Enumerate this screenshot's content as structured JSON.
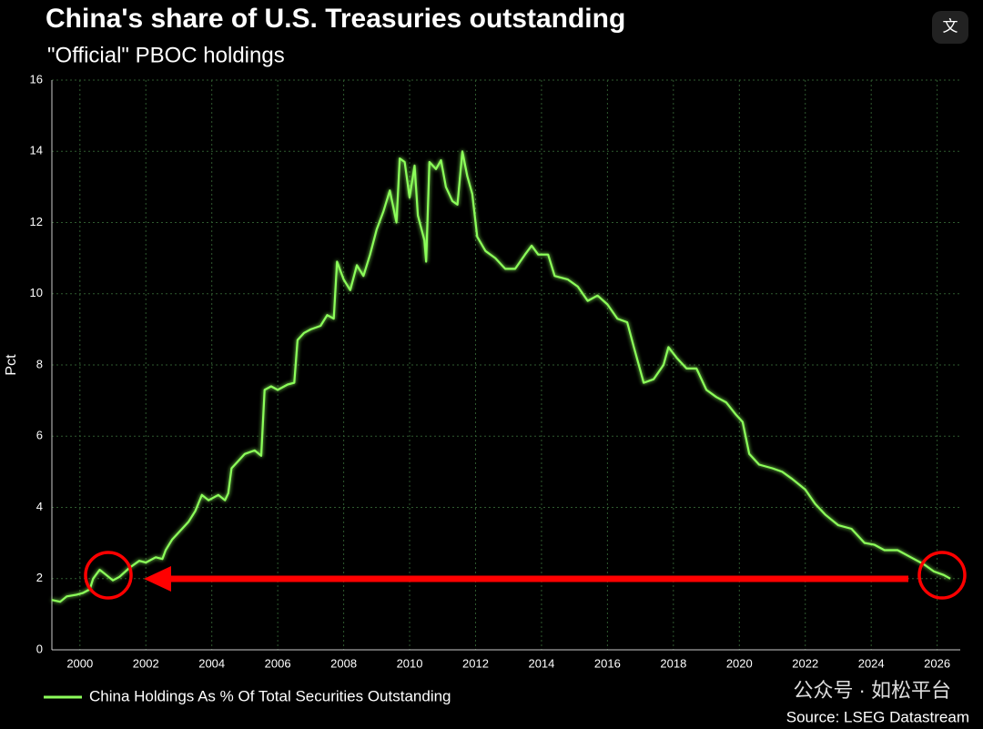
{
  "chart_data": {
    "type": "line",
    "title": "China's share of U.S. Treasuries outstanding",
    "subtitle": "\"Official\" PBOC holdings",
    "ylabel": "Pct",
    "source": "Source: LSEG Datastream",
    "watermark": "公众号 · 如松平台",
    "icon_label": "文",
    "grid": true,
    "xlim": [
      1999.15,
      2026.7
    ],
    "ylim": [
      0,
      16
    ],
    "xticks": [
      2000,
      2002,
      2004,
      2006,
      2008,
      2010,
      2012,
      2014,
      2016,
      2018,
      2020,
      2022,
      2024,
      2026
    ],
    "yticks": [
      0,
      2,
      4,
      6,
      8,
      10,
      12,
      14,
      16
    ],
    "x": [
      1999.15,
      1999.4,
      1999.6,
      1999.9,
      2000.1,
      2000.3,
      2000.4,
      2000.6,
      2000.8,
      2001.0,
      2001.2,
      2001.5,
      2001.8,
      2002.0,
      2002.3,
      2002.5,
      2002.6,
      2002.8,
      2003.0,
      2003.3,
      2003.5,
      2003.7,
      2003.9,
      2004.2,
      2004.4,
      2004.5,
      2004.6,
      2004.8,
      2005.0,
      2005.3,
      2005.5,
      2005.6,
      2005.8,
      2006.0,
      2006.3,
      2006.5,
      2006.6,
      2006.8,
      2007.0,
      2007.3,
      2007.5,
      2007.7,
      2007.8,
      2008.0,
      2008.2,
      2008.4,
      2008.6,
      2008.8,
      2009.0,
      2009.2,
      2009.4,
      2009.6,
      2009.7,
      2009.85,
      2010.0,
      2010.15,
      2010.25,
      2010.45,
      2010.5,
      2010.6,
      2010.8,
      2010.95,
      2011.1,
      2011.3,
      2011.45,
      2011.6,
      2011.75,
      2011.9,
      2012.05,
      2012.3,
      2012.6,
      2012.9,
      2013.2,
      2013.5,
      2013.7,
      2013.9,
      2014.2,
      2014.4,
      2014.8,
      2015.1,
      2015.4,
      2015.7,
      2016.0,
      2016.3,
      2016.6,
      2016.8,
      2017.1,
      2017.4,
      2017.7,
      2017.85,
      2018.1,
      2018.4,
      2018.7,
      2019.0,
      2019.3,
      2019.6,
      2019.9,
      2020.1,
      2020.3,
      2020.6,
      2021.0,
      2021.3,
      2021.6,
      2022.0,
      2022.3,
      2022.6,
      2023.0,
      2023.4,
      2023.8,
      2024.1,
      2024.4,
      2024.8,
      2025.2,
      2025.6,
      2025.9,
      2026.2,
      2026.4
    ],
    "series": [
      {
        "name": "China Holdings As % Of Total Securities Outstanding",
        "color": "#8cff5a",
        "values": [
          1.4,
          1.35,
          1.5,
          1.55,
          1.6,
          1.7,
          2.0,
          2.25,
          2.1,
          1.95,
          2.05,
          2.3,
          2.5,
          2.45,
          2.6,
          2.55,
          2.8,
          3.1,
          3.3,
          3.6,
          3.9,
          4.35,
          4.2,
          4.35,
          4.2,
          4.4,
          5.1,
          5.3,
          5.5,
          5.6,
          5.45,
          7.3,
          7.4,
          7.3,
          7.45,
          7.5,
          8.7,
          8.9,
          9.0,
          9.1,
          9.4,
          9.3,
          10.9,
          10.4,
          10.1,
          10.8,
          10.5,
          11.1,
          11.8,
          12.3,
          12.9,
          12.0,
          13.8,
          13.7,
          12.7,
          13.6,
          12.2,
          11.5,
          10.9,
          13.7,
          13.5,
          13.75,
          13.0,
          12.6,
          12.5,
          14.0,
          13.3,
          12.8,
          11.6,
          11.2,
          11.0,
          10.7,
          10.7,
          11.1,
          11.35,
          11.1,
          11.1,
          10.5,
          10.4,
          10.2,
          9.8,
          9.95,
          9.7,
          9.3,
          9.2,
          8.5,
          7.5,
          7.6,
          8.0,
          8.5,
          8.2,
          7.9,
          7.9,
          7.3,
          7.1,
          6.95,
          6.6,
          6.4,
          5.5,
          5.2,
          5.1,
          5.0,
          4.8,
          4.5,
          4.1,
          3.8,
          3.5,
          3.4,
          3.0,
          2.95,
          2.8,
          2.8,
          2.6,
          2.4,
          2.2,
          2.1,
          2.0
        ]
      }
    ]
  }
}
